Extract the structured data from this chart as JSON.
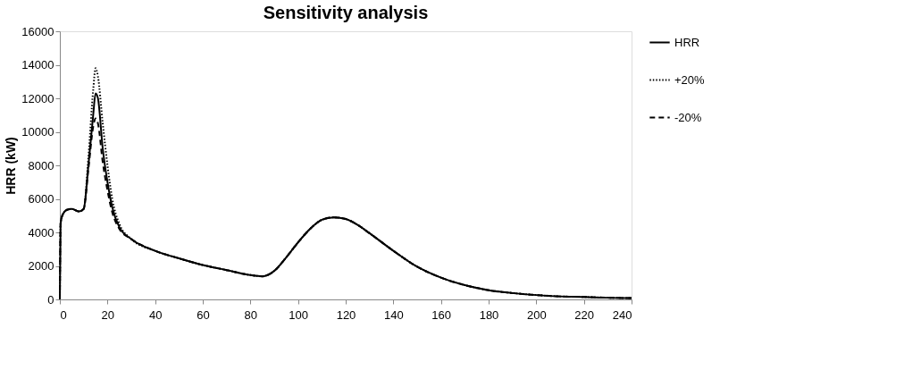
{
  "chart_data": {
    "type": "line",
    "title": "Sensitivity analysis",
    "ylabel": "HRR (kW)",
    "xlim": [
      0,
      240
    ],
    "xticks": [
      0,
      20,
      40,
      60,
      80,
      100,
      120,
      140,
      160,
      180,
      200,
      220,
      240
    ],
    "ylim": [
      0,
      16000
    ],
    "yticks": [
      0,
      2000,
      4000,
      6000,
      8000,
      10000,
      12000,
      14000,
      16000
    ],
    "grid": false,
    "legend": "right",
    "marker": "none",
    "series": [
      {
        "name": "HRR",
        "color": "#000000",
        "line_style": "solid",
        "x": [
          0,
          0.3,
          1,
          3,
          5,
          8,
          10,
          12,
          14,
          15,
          16,
          18,
          20,
          22,
          25,
          30,
          40,
          50,
          60,
          70,
          80,
          85,
          90,
          95,
          100,
          105,
          110,
          115,
          120,
          125,
          130,
          140,
          150,
          160,
          170,
          180,
          190,
          200,
          210,
          220,
          230,
          240
        ],
        "values": [
          0,
          4500,
          5000,
          5350,
          5400,
          5250,
          5400,
          8000,
          11000,
          12300,
          12000,
          9000,
          7000,
          5500,
          4300,
          3600,
          2900,
          2450,
          2050,
          1750,
          1450,
          1380,
          1700,
          2500,
          3400,
          4200,
          4750,
          4900,
          4800,
          4450,
          3950,
          2900,
          1950,
          1300,
          850,
          550,
          380,
          260,
          180,
          150,
          100,
          80
        ]
      },
      {
        "name": "+20%",
        "color": "#000000",
        "line_style": "dotted",
        "x": [
          0,
          0.3,
          1,
          3,
          5,
          8,
          10,
          12,
          14,
          15,
          16,
          18,
          20,
          22,
          25,
          30,
          40,
          50,
          60,
          70,
          80,
          85,
          90,
          95,
          100,
          105,
          110,
          115,
          120,
          125,
          130,
          140,
          150,
          160,
          170,
          180,
          190,
          200,
          210,
          220,
          230,
          240
        ],
        "values": [
          0,
          4500,
          5000,
          5350,
          5400,
          5250,
          5400,
          8500,
          12500,
          13800,
          13300,
          10500,
          8000,
          6000,
          4500,
          3600,
          2900,
          2450,
          2050,
          1750,
          1450,
          1380,
          1700,
          2500,
          3400,
          4200,
          4750,
          4900,
          4800,
          4450,
          3950,
          2900,
          1950,
          1300,
          850,
          550,
          380,
          260,
          180,
          150,
          100,
          80
        ]
      },
      {
        "name": "-20%",
        "color": "#000000",
        "line_style": "dashed",
        "x": [
          0,
          0.3,
          1,
          3,
          5,
          8,
          10,
          12,
          14,
          15,
          16,
          18,
          20,
          22,
          25,
          30,
          40,
          50,
          60,
          70,
          80,
          85,
          90,
          95,
          100,
          105,
          110,
          115,
          120,
          125,
          130,
          140,
          150,
          160,
          170,
          180,
          190,
          200,
          210,
          220,
          230,
          240
        ],
        "values": [
          0,
          4500,
          5000,
          5350,
          5400,
          5250,
          5400,
          7800,
          10300,
          10800,
          10500,
          8200,
          6500,
          5200,
          4200,
          3600,
          2900,
          2450,
          2050,
          1750,
          1450,
          1380,
          1700,
          2500,
          3400,
          4200,
          4750,
          4900,
          4800,
          4450,
          3950,
          2900,
          1950,
          1300,
          850,
          550,
          380,
          260,
          180,
          150,
          100,
          80
        ]
      }
    ]
  }
}
